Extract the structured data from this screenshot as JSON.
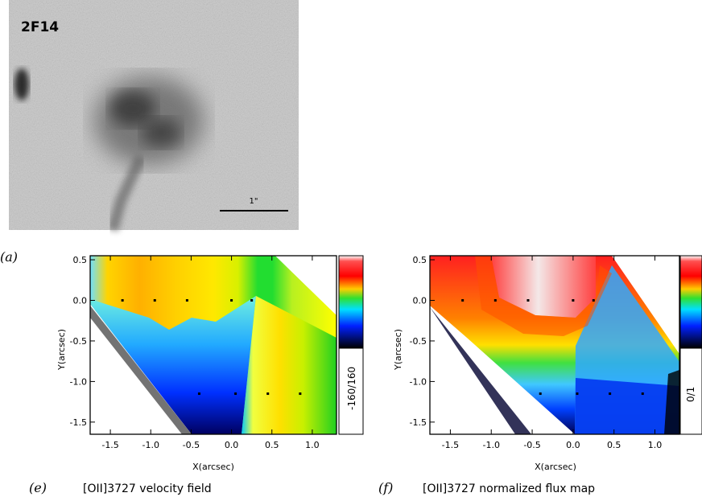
{
  "image_panel": {
    "label": "2F14",
    "scale_label": "1\"",
    "colors": {
      "background": "#c8c8c8",
      "blob": "#555555"
    }
  },
  "panel_a_label": "(a)",
  "chart_data": [
    {
      "type": "heatmap",
      "panel_letter": "(e)",
      "caption": "[OII]3727 velocity field",
      "xlabel": "X(arcsec)",
      "ylabel": "Y(arcsec)",
      "xlim": [
        -1.75,
        1.3
      ],
      "ylim": [
        -1.65,
        0.55
      ],
      "xticks": [
        -1.5,
        -1.0,
        -0.5,
        0.0,
        0.5,
        1.0
      ],
      "xtick_labels": [
        "-1.5",
        "-1.0",
        "-0.5",
        "0.0",
        "0.5",
        "1.0"
      ],
      "yticks": [
        0.5,
        0.0,
        -0.5,
        -1.0,
        -1.5
      ],
      "ytick_labels": [
        "0.5",
        "0.0",
        "-0.5",
        "-1.0",
        "-1.5"
      ],
      "colorbar_range_label": "-160/160",
      "colorbar_range": [
        -160,
        160
      ],
      "fiber_positions": [
        [
          -1.35,
          0.0
        ],
        [
          -0.95,
          0.0
        ],
        [
          -0.55,
          0.0
        ],
        [
          0.0,
          0.0
        ],
        [
          0.25,
          0.0
        ],
        [
          -0.4,
          -1.15
        ],
        [
          0.05,
          -1.15
        ],
        [
          0.45,
          -1.15
        ],
        [
          0.85,
          -1.15
        ]
      ]
    },
    {
      "type": "heatmap",
      "panel_letter": "(f)",
      "caption": "[OII]3727 normalized flux map",
      "xlabel": "X(arcsec)",
      "ylabel": "Y(arcsec)",
      "xlim": [
        -1.75,
        1.3
      ],
      "ylim": [
        -1.65,
        0.55
      ],
      "xticks": [
        -1.5,
        -1.0,
        -0.5,
        0.0,
        0.5,
        1.0
      ],
      "xtick_labels": [
        "-1.5",
        "-1.0",
        "-0.5",
        "0.0",
        "0.5",
        "1.0"
      ],
      "yticks": [
        0.5,
        0.0,
        -0.5,
        -1.0,
        -1.5
      ],
      "ytick_labels": [
        "0.5",
        "0.0",
        "-0.5",
        "-1.0",
        "-1.5"
      ],
      "colorbar_range_label": "0/1",
      "colorbar_range": [
        0,
        1
      ],
      "fiber_positions": [
        [
          -1.35,
          0.0
        ],
        [
          -0.95,
          0.0
        ],
        [
          -0.55,
          0.0
        ],
        [
          0.0,
          0.0
        ],
        [
          0.25,
          0.0
        ],
        [
          -0.4,
          -1.15
        ],
        [
          0.05,
          -1.15
        ],
        [
          0.45,
          -1.15
        ],
        [
          0.85,
          -1.15
        ]
      ]
    }
  ]
}
